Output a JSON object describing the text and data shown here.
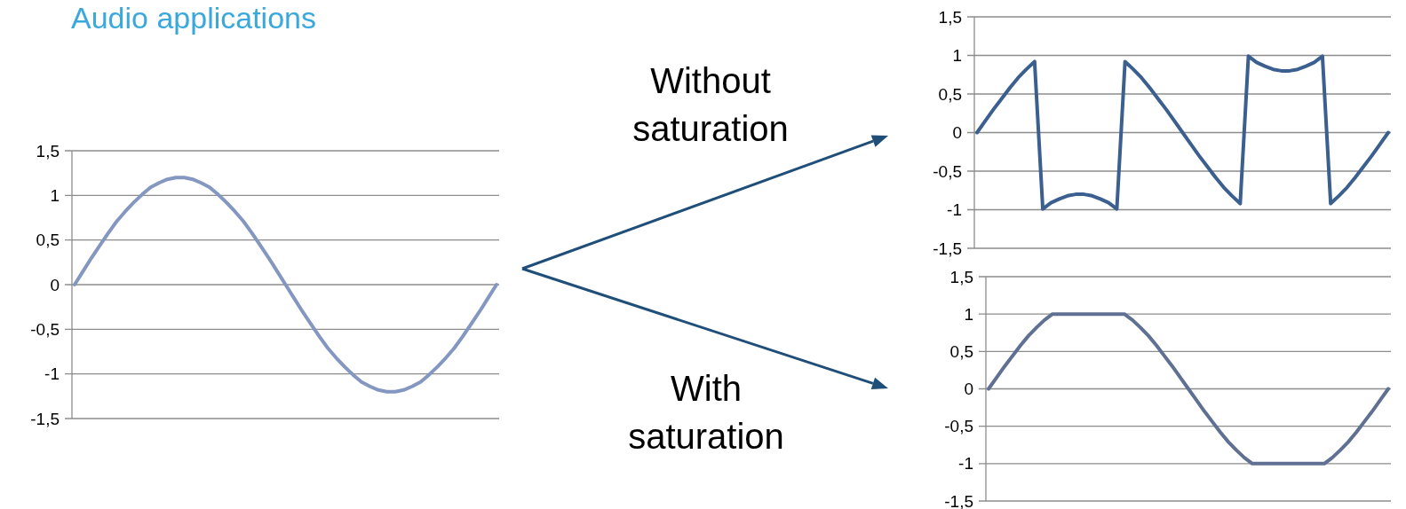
{
  "chart_data": [
    {
      "type": "line",
      "title": "Audio applications",
      "categories": [
        null,
        null,
        null,
        null,
        null,
        null,
        null,
        null,
        null,
        null,
        null,
        null,
        null,
        null,
        null,
        null,
        null,
        null,
        null,
        null,
        null,
        null,
        null,
        null,
        null,
        null,
        null,
        null,
        null,
        null,
        null,
        null,
        null,
        null,
        null,
        null,
        null,
        null,
        null,
        null,
        null,
        null,
        null,
        null,
        null,
        null,
        null,
        null,
        null,
        null,
        null
      ],
      "series": [
        {
          "color": "#8497c0",
          "values": [
            0,
            0.15,
            0.3,
            0.44,
            0.58,
            0.71,
            0.82,
            0.92,
            1.01,
            1.09,
            1.14,
            1.18,
            1.2,
            1.2,
            1.18,
            1.14,
            1.09,
            1.01,
            0.92,
            0.82,
            0.71,
            0.58,
            0.44,
            0.3,
            0.15,
            0,
            -0.15,
            -0.3,
            -0.44,
            -0.58,
            -0.71,
            -0.82,
            -0.92,
            -1.01,
            -1.09,
            -1.14,
            -1.18,
            -1.2,
            -1.2,
            -1.18,
            -1.14,
            -1.09,
            -1.01,
            -0.92,
            -0.82,
            -0.71,
            -0.58,
            -0.44,
            -0.3,
            -0.15,
            0
          ]
        }
      ],
      "ylim": [
        -1.5,
        1.5
      ],
      "yticks": [
        {
          "value": -1.5,
          "label": "-1,5"
        },
        -1,
        {
          "value": -0.5,
          "label": "-0,5"
        },
        0,
        {
          "value": 0.5,
          "label": "0,5"
        },
        1,
        {
          "value": 1.5,
          "label": "1,5"
        }
      ],
      "grid": "y",
      "tick_labels": "y"
    },
    {
      "type": "line",
      "annotations": [
        "Without saturation"
      ],
      "categories": [
        null,
        null,
        null,
        null,
        null,
        null,
        null,
        null,
        null,
        null,
        null,
        null,
        null,
        null,
        null,
        null,
        null,
        null,
        null,
        null,
        null,
        null,
        null,
        null,
        null,
        null,
        null,
        null,
        null,
        null,
        null,
        null,
        null,
        null,
        null,
        null,
        null,
        null,
        null,
        null,
        null,
        null,
        null,
        null,
        null,
        null,
        null,
        null,
        null,
        null,
        null
      ],
      "series": [
        {
          "color": "#3b5f8e",
          "values": [
            0,
            0.15,
            0.3,
            0.44,
            0.58,
            0.71,
            0.82,
            0.92,
            -0.99,
            -0.91,
            -0.86,
            -0.82,
            -0.8,
            -0.8,
            -0.82,
            -0.86,
            -0.91,
            -0.99,
            0.92,
            0.82,
            0.71,
            0.58,
            0.44,
            0.3,
            0.15,
            0,
            -0.15,
            -0.3,
            -0.44,
            -0.58,
            -0.71,
            -0.82,
            -0.92,
            0.99,
            0.91,
            0.86,
            0.82,
            0.8,
            0.8,
            0.82,
            0.86,
            0.91,
            0.99,
            -0.92,
            -0.82,
            -0.71,
            -0.58,
            -0.44,
            -0.3,
            -0.15,
            0
          ]
        }
      ],
      "ylim": [
        -1.5,
        1.5
      ],
      "yticks": [
        {
          "value": -1.5,
          "label": "-1,5"
        },
        -1,
        {
          "value": -0.5,
          "label": "-0,5"
        },
        0,
        {
          "value": 0.5,
          "label": "0,5"
        },
        1,
        {
          "value": 1.5,
          "label": "1,5"
        }
      ],
      "grid": "y",
      "tick_labels": "y"
    },
    {
      "type": "line",
      "annotations": [
        "With saturation"
      ],
      "categories": [
        null,
        null,
        null,
        null,
        null,
        null,
        null,
        null,
        null,
        null,
        null,
        null,
        null,
        null,
        null,
        null,
        null,
        null,
        null,
        null,
        null,
        null,
        null,
        null,
        null,
        null,
        null,
        null,
        null,
        null,
        null,
        null,
        null,
        null,
        null,
        null,
        null,
        null,
        null,
        null,
        null,
        null,
        null,
        null,
        null,
        null,
        null,
        null,
        null,
        null,
        null
      ],
      "series": [
        {
          "color": "#5f7093",
          "values": [
            0,
            0.15,
            0.3,
            0.44,
            0.58,
            0.71,
            0.82,
            0.92,
            1,
            1,
            1,
            1,
            1,
            1,
            1,
            1,
            1,
            1,
            0.92,
            0.82,
            0.71,
            0.58,
            0.44,
            0.3,
            0.15,
            0,
            -0.15,
            -0.3,
            -0.44,
            -0.58,
            -0.71,
            -0.82,
            -0.92,
            -1,
            -1,
            -1,
            -1,
            -1,
            -1,
            -1,
            -1,
            -1,
            -1,
            -0.92,
            -0.82,
            -0.71,
            -0.58,
            -0.44,
            -0.3,
            -0.15,
            0
          ]
        }
      ],
      "ylim": [
        -1.5,
        1.5
      ],
      "yticks": [
        {
          "value": -1.5,
          "label": "-1,5"
        },
        -1,
        {
          "value": -0.5,
          "label": "-0,5"
        },
        0,
        {
          "value": 0.5,
          "label": "0,5"
        },
        1,
        {
          "value": 1.5,
          "label": "1,5"
        }
      ],
      "grid": "y",
      "tick_labels": "y"
    }
  ]
}
